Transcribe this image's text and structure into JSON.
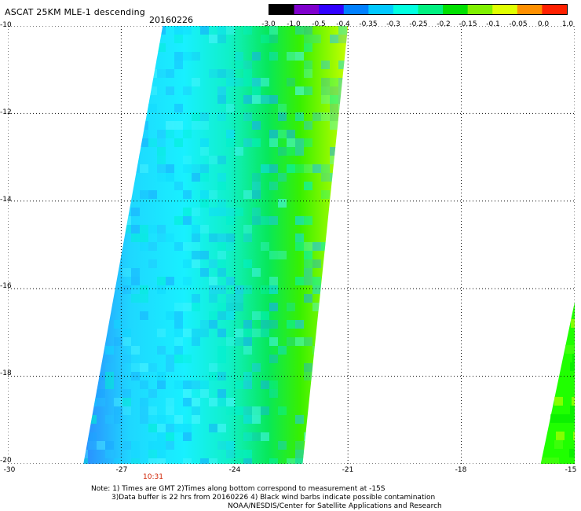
{
  "header": {
    "title": "ASCAT 25KM MLE-1 descending",
    "date": "20160226"
  },
  "colorbar": {
    "labels": [
      "-3.0",
      "-1.0",
      "-0.5",
      "-0.4",
      "-0.35",
      "-0.3",
      "-0.25",
      "-0.2",
      "-0.15",
      "-0.1",
      "-0.05",
      "0.0",
      "1.0"
    ],
    "colors": [
      "#000000",
      "#7f00cc",
      "#3000ff",
      "#0080ff",
      "#00c8ff",
      "#00ffe0",
      "#00f080",
      "#00e000",
      "#80f000",
      "#e0ff00",
      "#ff9000",
      "#ff2000"
    ]
  },
  "axes": {
    "y_labels": [
      "-10",
      "-12",
      "-14",
      "-16",
      "-18",
      "-20"
    ],
    "x_labels": [
      "-30",
      "-27",
      "-24",
      "-21",
      "-18",
      "-15"
    ],
    "lat_range": [
      -20,
      -10
    ],
    "lon_range": [
      -30,
      -15
    ],
    "grid": "dotted"
  },
  "time_label": "10:31",
  "notes": {
    "line1": "Note: 1) Times are GMT 2)Times along bottom correspond to measurement at -15S",
    "line2": "3)Data buffer is 22 hrs from 20160226 4) Black wind barbs indicate possible contamination",
    "line3": "NOAA/NESDIS/Center for Satellite Applications and Research"
  },
  "map": {
    "main_swath": {
      "corners_lonlat": [
        [
          -25.9,
          -10.0
        ],
        [
          -21.0,
          -10.0
        ],
        [
          -22.2,
          -20.0
        ],
        [
          -28.0,
          -20.0
        ]
      ],
      "gradient": [
        "#2b8cff",
        "#1ed8ff",
        "#18f0ff",
        "#10f0c8",
        "#08e858",
        "#38f000",
        "#c8ff00"
      ],
      "patch_colors": [
        "#1aa8ff",
        "#22c0ff",
        "#10d8ff",
        "#4ff5ff",
        "#00f0d0"
      ]
    },
    "east_swath": {
      "corners_lonlat": [
        [
          -15.0,
          -16.3
        ],
        [
          -15.0,
          -20.0
        ],
        [
          -15.9,
          -20.0
        ],
        [
          -15.0,
          -16.3
        ]
      ],
      "colors": [
        "#20ff00",
        "#50ff10",
        "#00e800",
        "#c8ff00"
      ]
    }
  }
}
